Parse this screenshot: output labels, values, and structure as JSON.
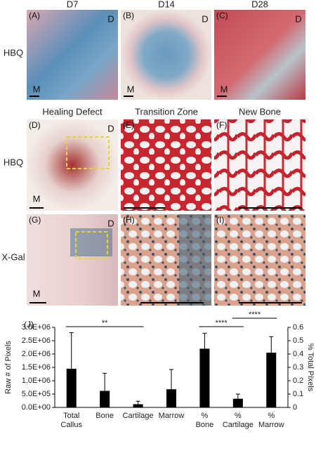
{
  "figure": {
    "column_headers_top": [
      "D7",
      "D14",
      "D28"
    ],
    "column_headers_mid": [
      "Healing Defect",
      "Transition Zone",
      "New Bone"
    ],
    "row_labels": [
      "HBQ",
      "HBQ",
      "X-Gal"
    ],
    "panels": [
      {
        "label": "(A)",
        "marks": [
          "D",
          "M"
        ]
      },
      {
        "label": "(B)",
        "marks": [
          "D",
          "M"
        ]
      },
      {
        "label": "(C)",
        "marks": [
          "D",
          "M"
        ]
      },
      {
        "label": "(D)",
        "marks": [
          "D",
          "M"
        ]
      },
      {
        "label": "(E)",
        "marks": []
      },
      {
        "label": "(F)",
        "marks": []
      },
      {
        "label": "(G)",
        "marks": [
          "D",
          "M"
        ]
      },
      {
        "label": "(H)",
        "marks": []
      },
      {
        "label": "(I)",
        "marks": []
      }
    ]
  },
  "chart_data": {
    "type": "bar",
    "panel_label": "(J)",
    "y_label": "Raw # of Pixels",
    "y2_label": "% Total Pixels",
    "categories": [
      [
        "Total",
        "Callus"
      ],
      [
        "Bone"
      ],
      [
        "Cartilage"
      ],
      [
        "Marrow"
      ],
      [
        "%",
        "Bone"
      ],
      [
        "%",
        "Cartilage"
      ],
      [
        "%",
        "Marrow"
      ]
    ],
    "series": [
      {
        "color": "#000000",
        "values": [
          1450000,
          620000,
          120000,
          680000,
          null,
          null,
          null
        ],
        "errors": [
          1350000,
          660000,
          110000,
          740000,
          null,
          null,
          null
        ]
      },
      {
        "color": "#000000",
        "axis": "y2",
        "values": [
          null,
          null,
          null,
          null,
          0.44,
          0.065,
          0.41
        ],
        "errors": [
          null,
          null,
          null,
          null,
          0.116,
          0.035,
          0.12
        ]
      }
    ],
    "ylim": [
      0,
      3000000
    ],
    "yticks": [
      {
        "value": 0,
        "label": "0.0E+00"
      },
      {
        "value": 500000,
        "label": "5.0E+05"
      },
      {
        "value": 1000000,
        "label": "1.0E+06"
      },
      {
        "value": 1500000,
        "label": "1.5E+06"
      },
      {
        "value": 2000000,
        "label": "2.0E+06"
      },
      {
        "value": 2500000,
        "label": "2.5E+06"
      },
      {
        "value": 3000000,
        "label": "3.0E+06"
      }
    ],
    "y2lim": [
      0,
      0.6
    ],
    "y2ticks": [
      0,
      0.1,
      0.2,
      0.3,
      0.4,
      0.5,
      0.6
    ],
    "annotations": [
      {
        "label": "**",
        "from": 0,
        "to": 2
      },
      {
        "label": "****",
        "from": 4,
        "to": 5
      },
      {
        "label": "****",
        "from": 5,
        "to": 6
      }
    ]
  }
}
